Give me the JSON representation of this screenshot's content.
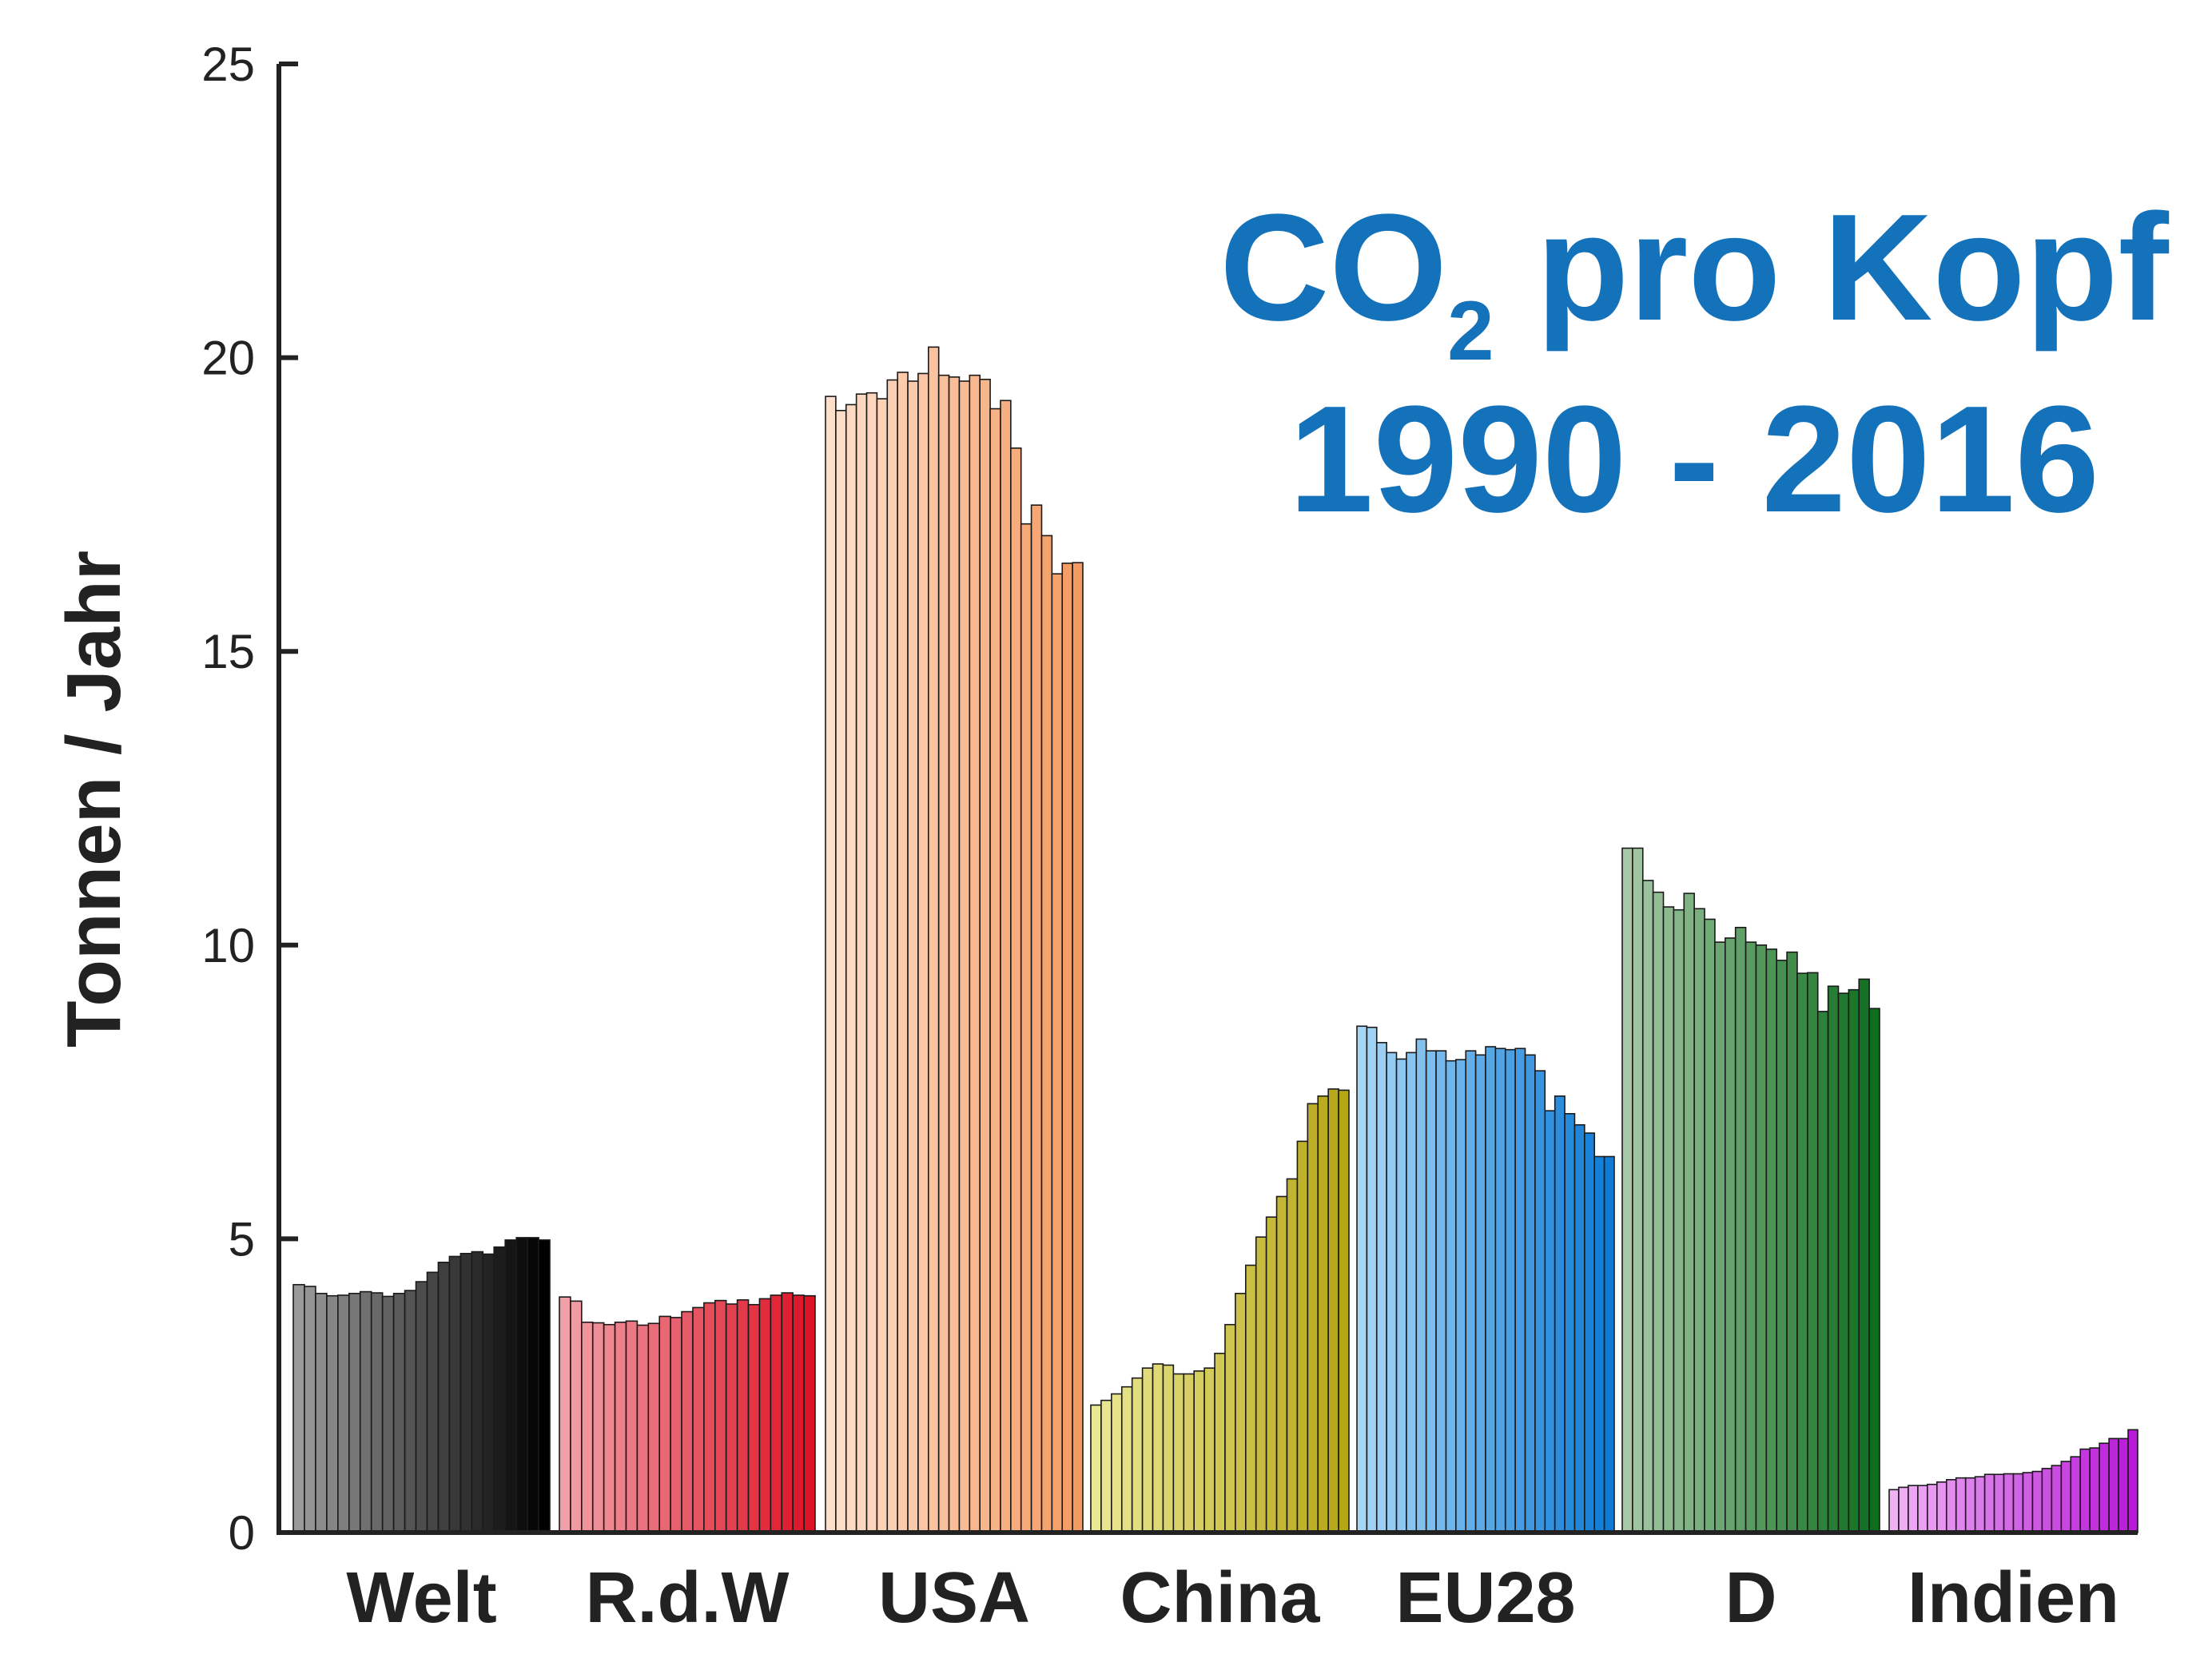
{
  "chart_data": {
    "type": "bar",
    "title_prefix": "CO",
    "title_subscript": "2",
    "title_suffix": " pro Kopf",
    "subtitle": "1990 - 2016",
    "ylabel": "Tonnen / Jahr",
    "xlabel": "",
    "ylim": [
      0,
      25
    ],
    "yticks": [
      "0",
      "5",
      "10",
      "15",
      "20",
      "25"
    ],
    "grid": false,
    "title_color": "#1472bb",
    "years": [
      1990,
      2016
    ],
    "series": [
      {
        "label": "Welt",
        "color_start": "#9a9a9a",
        "color_end": "#000000",
        "values": [
          4.22,
          4.19,
          4.07,
          4.03,
          4.04,
          4.07,
          4.1,
          4.08,
          4.02,
          4.07,
          4.12,
          4.27,
          4.43,
          4.6,
          4.7,
          4.75,
          4.78,
          4.74,
          4.86,
          4.98,
          5.02,
          5.02,
          4.98
        ]
      },
      {
        "label": "R.d.W",
        "color_start": "#f2a0a8",
        "color_end": "#dc1426",
        "values": [
          4.01,
          3.94,
          3.58,
          3.57,
          3.54,
          3.58,
          3.6,
          3.53,
          3.56,
          3.68,
          3.66,
          3.76,
          3.83,
          3.91,
          3.95,
          3.89,
          3.96,
          3.88,
          3.98,
          4.04,
          4.08,
          4.04,
          4.03
        ]
      },
      {
        "label": "USA",
        "color_start": "#fde0cc",
        "color_end": "#f49b63",
        "values": [
          19.34,
          19.1,
          19.2,
          19.38,
          19.4,
          19.3,
          19.62,
          19.75,
          19.6,
          19.73,
          20.18,
          19.7,
          19.67,
          19.6,
          19.7,
          19.63,
          19.13,
          19.27,
          18.46,
          17.17,
          17.49,
          16.97,
          16.32,
          16.5,
          16.51
        ]
      },
      {
        "label": "China",
        "color_start": "#ebe894",
        "color_end": "#b5a616",
        "values": [
          2.17,
          2.25,
          2.36,
          2.48,
          2.63,
          2.8,
          2.87,
          2.85,
          2.7,
          2.7,
          2.75,
          2.8,
          3.05,
          3.54,
          4.07,
          4.55,
          5.03,
          5.37,
          5.72,
          6.02,
          6.66,
          7.3,
          7.43,
          7.55,
          7.53
        ]
      },
      {
        "label": "EU28",
        "color_start": "#a6d6f6",
        "color_end": "#0e7bd6",
        "values": [
          8.62,
          8.6,
          8.34,
          8.17,
          8.06,
          8.17,
          8.4,
          8.2,
          8.2,
          8.03,
          8.05,
          8.2,
          8.13,
          8.27,
          8.24,
          8.22,
          8.24,
          8.13,
          7.86,
          7.18,
          7.43,
          7.13,
          6.94,
          6.8,
          6.4,
          6.4
        ]
      },
      {
        "label": "D",
        "color_start": "#a6c8a6",
        "color_end": "#0e6e1e",
        "values": [
          11.65,
          11.65,
          11.1,
          10.9,
          10.65,
          10.6,
          10.88,
          10.62,
          10.44,
          10.05,
          10.12,
          10.3,
          10.05,
          10.0,
          9.93,
          9.74,
          9.88,
          9.52,
          9.53,
          8.87,
          9.3,
          9.18,
          9.24,
          9.42,
          8.92
        ]
      },
      {
        "label": "Indien",
        "color_start": "#f0b2f5",
        "color_end": "#b81ad8",
        "values": [
          0.73,
          0.77,
          0.8,
          0.8,
          0.82,
          0.86,
          0.9,
          0.93,
          0.93,
          0.95,
          0.99,
          0.99,
          1.0,
          1.0,
          1.02,
          1.04,
          1.09,
          1.14,
          1.21,
          1.29,
          1.42,
          1.44,
          1.52,
          1.6,
          1.6,
          1.75
        ]
      }
    ]
  }
}
